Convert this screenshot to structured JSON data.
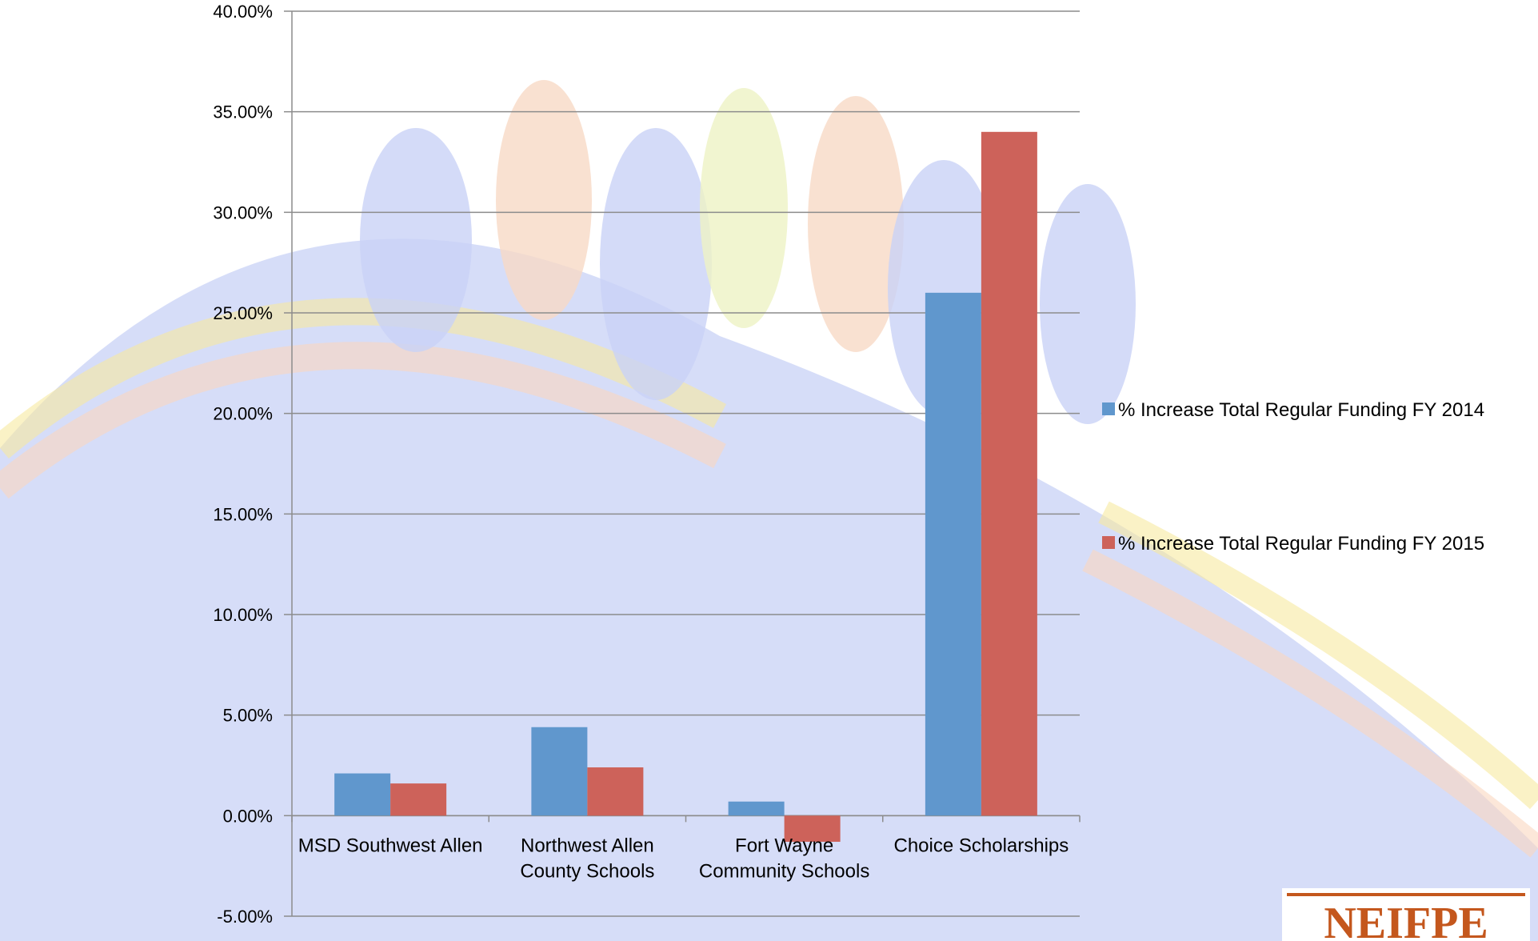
{
  "chart_data": {
    "type": "bar",
    "categories": [
      [
        "MSD Southwest Allen"
      ],
      [
        "Northwest Allen",
        "County Schools"
      ],
      [
        "Fort Wayne",
        "Community Schools"
      ],
      [
        "Choice Scholarships"
      ]
    ],
    "series": [
      {
        "name": "% Increase Total Regular Funding FY 2014",
        "values": [
          2.1,
          4.4,
          0.7,
          26.0
        ],
        "color": "#6097CD"
      },
      {
        "name": "% Increase Total Regular Funding FY 2015",
        "values": [
          1.6,
          2.4,
          -1.3,
          34.0
        ],
        "color": "#CD625A"
      }
    ],
    "ylim": [
      -5,
      40
    ],
    "yticks": [
      -5,
      0,
      5,
      10,
      15,
      20,
      25,
      30,
      35,
      40
    ],
    "ytick_labels": [
      "-5.00%",
      "0.00%",
      "5.00%",
      "10.00%",
      "15.00%",
      "20.00%",
      "25.00%",
      "30.00%",
      "35.00%",
      "40.00%"
    ],
    "grid": true,
    "legend_position": "right",
    "title": "",
    "xlabel": "",
    "ylabel": ""
  },
  "logo": {
    "text": "NEIFPE",
    "color": "#C4571D"
  },
  "colors": {
    "grid": "#8C8C8C",
    "axis": "#8C8C8C",
    "background_art": "#D6DDF8"
  }
}
